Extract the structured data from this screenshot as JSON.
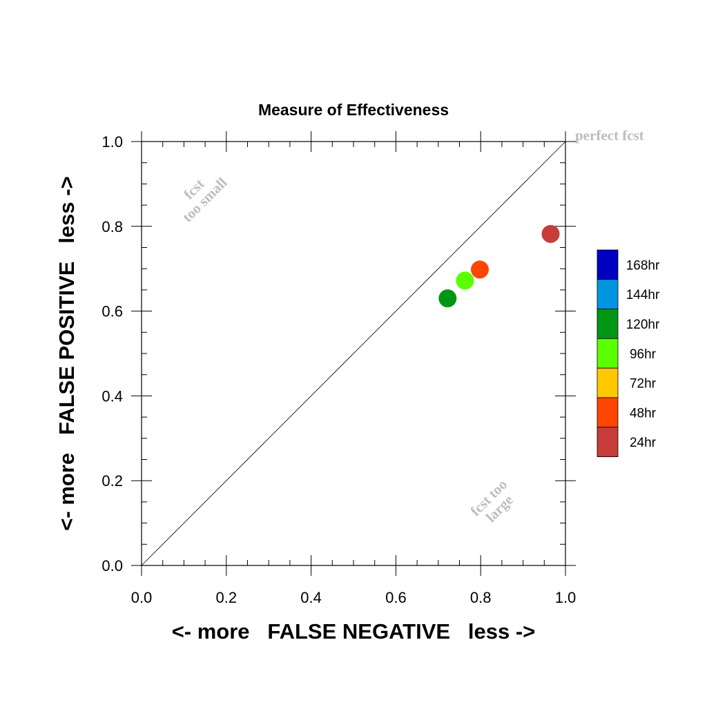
{
  "chart_data": {
    "type": "scatter",
    "title": "Measure of Effectiveness",
    "xlabel": "<- more   FALSE NEGATIVE   less ->",
    "ylabel": "<- more   FALSE POSITIVE   less ->",
    "xlim": [
      0,
      1
    ],
    "ylim": [
      0,
      1
    ],
    "x_ticks": [
      "0.0",
      "0.2",
      "0.4",
      "0.6",
      "0.8",
      "1.0"
    ],
    "y_ticks": [
      "0.0",
      "0.2",
      "0.4",
      "0.6",
      "0.8",
      "1.0"
    ],
    "grid": false,
    "diagonal_line": true,
    "annotations": {
      "perfect": "perfect fcst",
      "too_small_line1": "fcst",
      "too_small_line2": "too small",
      "too_large_line1": "fcst too",
      "too_large_line2": "large"
    },
    "legend": {
      "placement": "right",
      "entries": [
        {
          "label": "168hr",
          "color": "#0000c0"
        },
        {
          "label": "144hr",
          "color": "#0096e0"
        },
        {
          "label": "120hr",
          "color": "#009614"
        },
        {
          "label": "96hr",
          "color": "#5aff00"
        },
        {
          "label": "72hr",
          "color": "#ffc800"
        },
        {
          "label": "48hr",
          "color": "#ff4600"
        },
        {
          "label": "24hr",
          "color": "#c83c3c"
        }
      ]
    },
    "points": [
      {
        "name": "24hr",
        "x": 0.965,
        "y": 0.782,
        "color": "#c83c3c"
      },
      {
        "name": "48hr",
        "x": 0.798,
        "y": 0.698,
        "color": "#ff4600"
      },
      {
        "name": "96hr",
        "x": 0.763,
        "y": 0.672,
        "color": "#5aff00"
      },
      {
        "name": "120hr",
        "x": 0.722,
        "y": 0.63,
        "color": "#009614"
      }
    ]
  }
}
